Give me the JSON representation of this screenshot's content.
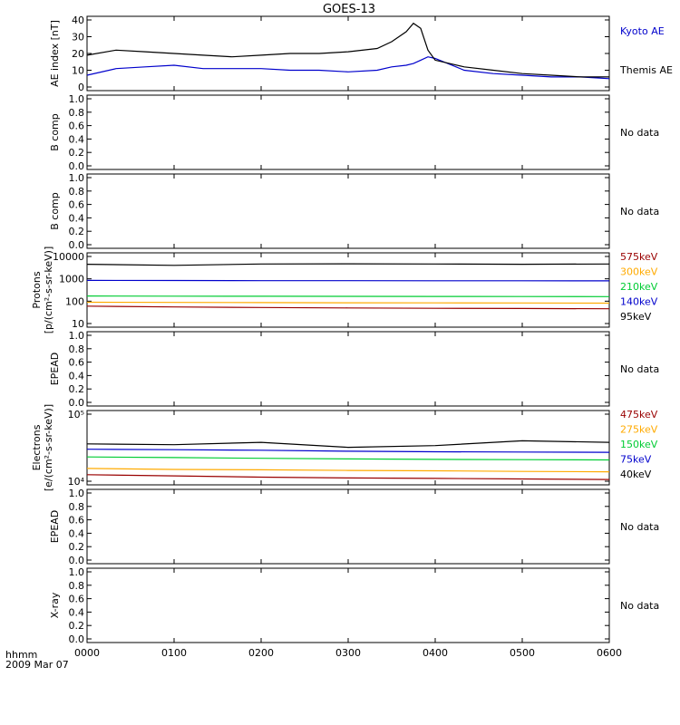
{
  "title": "GOES-13",
  "colors": {
    "black": "#000000",
    "blue": "#0000cc",
    "green": "#00cc33",
    "orange": "#ffaa00",
    "darkred": "#990000"
  },
  "x_axis": {
    "ticks": [
      "0000",
      "0100",
      "0200",
      "0300",
      "0400",
      "0500",
      "0600"
    ],
    "format_label": "hhmm",
    "date_label": "2009 Mar 07"
  },
  "chart_data": [
    {
      "type": "line",
      "panel": "ae",
      "ylabel": "AE index [nT]",
      "ylim": [
        0,
        40
      ],
      "yticks": [
        "0",
        "10",
        "20",
        "30",
        "40"
      ],
      "x": [
        "0000",
        "0020",
        "0040",
        "0100",
        "0120",
        "0140",
        "0200",
        "0220",
        "0240",
        "0300",
        "0320",
        "0330",
        "0340",
        "0345",
        "0350",
        "0355",
        "0400",
        "0420",
        "0440",
        "0500",
        "0520",
        "0540",
        "0600"
      ],
      "series": [
        {
          "name": "Kyoto AE",
          "color": "#0000cc",
          "values": [
            7,
            11,
            12,
            13,
            11,
            11,
            11,
            10,
            10,
            9,
            10,
            12,
            13,
            14,
            16,
            18,
            17,
            10,
            8,
            7,
            6,
            6,
            5
          ]
        },
        {
          "name": "Themis AE",
          "color": "#000000",
          "values": [
            19,
            22,
            21,
            20,
            19,
            18,
            19,
            20,
            20,
            21,
            23,
            27,
            33,
            38,
            35,
            22,
            16,
            12,
            10,
            8,
            7,
            6,
            6
          ]
        }
      ]
    },
    {
      "type": "line",
      "panel": "empty",
      "ylabel": "B comp",
      "ylim": [
        0,
        1
      ],
      "yticks": [
        "0.0",
        "0.2",
        "0.4",
        "0.6",
        "0.8",
        "1.0"
      ],
      "note": "No data"
    },
    {
      "type": "line",
      "panel": "empty",
      "ylabel": "B comp",
      "ylim": [
        0,
        1
      ],
      "yticks": [
        "0.0",
        "0.2",
        "0.4",
        "0.6",
        "0.8",
        "1.0"
      ],
      "note": "No data"
    },
    {
      "type": "line",
      "panel": "protons",
      "ylabel": "Protons",
      "ylabel2": "[p/(cm²-s-sr-keV)]",
      "scale": "log",
      "ylim": [
        10,
        10000
      ],
      "yticks": [
        "10",
        "100",
        "1000",
        "10000"
      ],
      "x": [
        "0000",
        "0100",
        "0200",
        "0300",
        "0400",
        "0500",
        "0600"
      ],
      "series": [
        {
          "name": "575keV",
          "color": "#990000",
          "values": [
            60,
            55,
            52,
            50,
            48,
            47,
            46
          ]
        },
        {
          "name": "300keV",
          "color": "#ffaa00",
          "values": [
            90,
            88,
            86,
            85,
            84,
            83,
            82
          ]
        },
        {
          "name": "210keV",
          "color": "#00cc33",
          "values": [
            170,
            168,
            166,
            164,
            163,
            162,
            160
          ]
        },
        {
          "name": "140keV",
          "color": "#0000cc",
          "values": [
            850,
            840,
            830,
            830,
            820,
            820,
            810
          ]
        },
        {
          "name": "95keV",
          "color": "#000000",
          "values": [
            4500,
            4000,
            4600,
            4700,
            4600,
            4500,
            4600
          ]
        }
      ]
    },
    {
      "type": "line",
      "panel": "empty",
      "ylabel": "EPEAD",
      "ylim": [
        0,
        1
      ],
      "yticks": [
        "0.0",
        "0.2",
        "0.4",
        "0.6",
        "0.8",
        "1.0"
      ],
      "note": "No data"
    },
    {
      "type": "line",
      "panel": "electrons",
      "ylabel": "Electrons",
      "ylabel2": "[e/(cm²-s-sr-keV)]",
      "scale": "log",
      "ylim": [
        10000,
        100000
      ],
      "yticks": [
        "10⁴",
        "10⁵"
      ],
      "x": [
        "0000",
        "0100",
        "0200",
        "0300",
        "0400",
        "0500",
        "0600"
      ],
      "series": [
        {
          "name": "475keV",
          "color": "#990000",
          "values": [
            12500,
            12000,
            11500,
            11200,
            11000,
            10800,
            10600
          ]
        },
        {
          "name": "275keV",
          "color": "#ffaa00",
          "values": [
            15500,
            15000,
            14800,
            14500,
            14300,
            14000,
            13800
          ]
        },
        {
          "name": "150keV",
          "color": "#00cc33",
          "values": [
            23000,
            22500,
            22000,
            21500,
            21200,
            21000,
            20800
          ]
        },
        {
          "name": "75keV",
          "color": "#0000cc",
          "values": [
            30000,
            29500,
            29000,
            28000,
            27500,
            27200,
            27000
          ]
        },
        {
          "name": "40keV",
          "color": "#000000",
          "values": [
            36000,
            35000,
            38000,
            32000,
            34000,
            40000,
            38000
          ]
        }
      ]
    },
    {
      "type": "line",
      "panel": "empty",
      "ylabel": "EPEAD",
      "ylim": [
        0,
        1
      ],
      "yticks": [
        "0.0",
        "0.2",
        "0.4",
        "0.6",
        "0.8",
        "1.0"
      ],
      "note": "No data"
    },
    {
      "type": "line",
      "panel": "empty",
      "ylabel": "X-ray",
      "ylim": [
        0,
        1
      ],
      "yticks": [
        "0.0",
        "0.2",
        "0.4",
        "0.6",
        "0.8",
        "1.0"
      ],
      "note": "No data"
    }
  ]
}
